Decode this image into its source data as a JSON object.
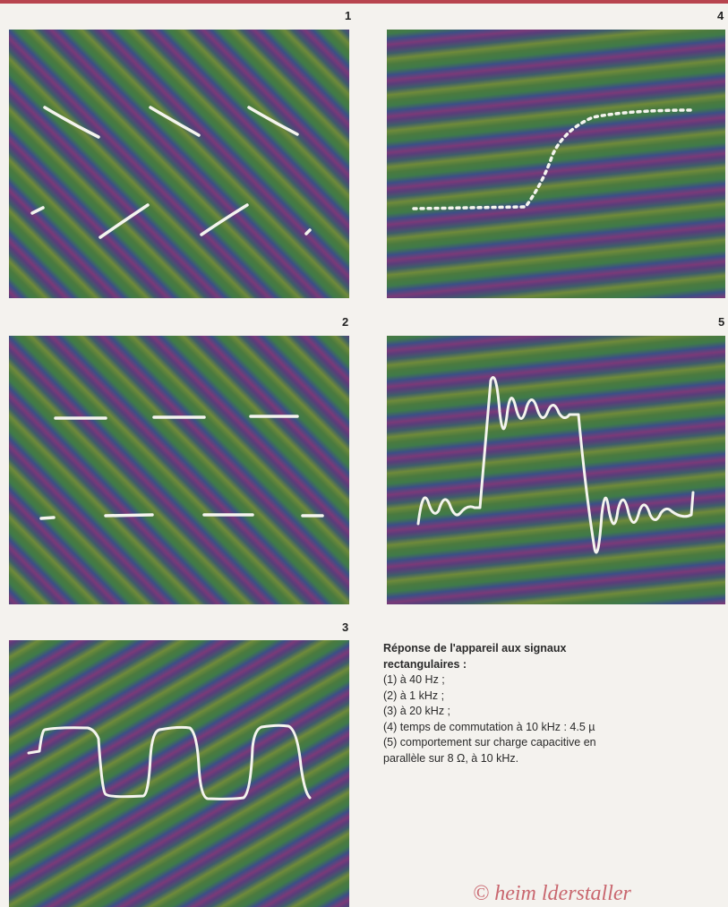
{
  "panels": [
    {
      "number": "1"
    },
    {
      "number": "4"
    },
    {
      "number": "2"
    },
    {
      "number": "5"
    },
    {
      "number": "3"
    }
  ],
  "caption": {
    "title_line1": "Réponse de l'appareil aux signaux",
    "title_line2": "rectangulaires :",
    "item1": "(1) à 40 Hz ;",
    "item2": "(2) à 1 kHz ;",
    "item3": "(3) à 20 kHz ;",
    "item4": "(4) temps de commutation à 10 kHz : 4.5 µ",
    "item5_line1": "(5) comportement sur charge capacitive en",
    "item5_line2": "parallèle sur 8 Ω, à 10 kHz."
  },
  "watermark": "© heim lderstaller",
  "colors": {
    "trace": "#f4f4ee",
    "top_rule": "#b8454f",
    "watermark": "#c9676f"
  }
}
